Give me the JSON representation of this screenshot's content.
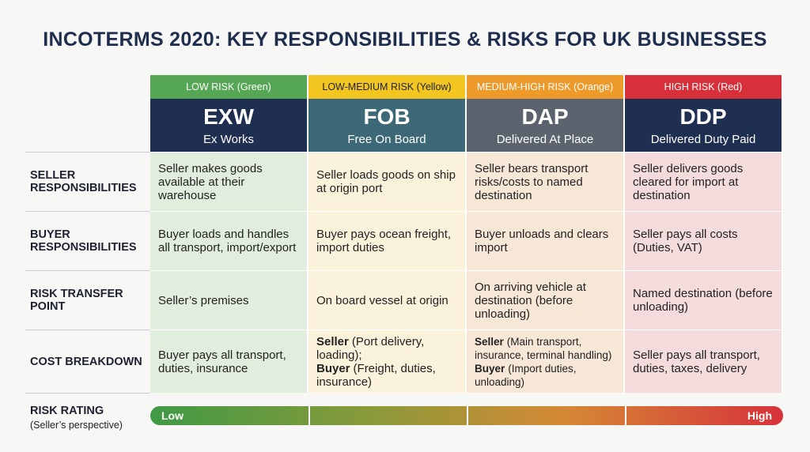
{
  "title": "INCOTERMS 2020: KEY RESPONSIBILITIES & RISKS FOR UK BUSINESSES",
  "columns": [
    {
      "risk": "LOW RISK (Green)",
      "code": "EXW",
      "name": "Ex Works"
    },
    {
      "risk": "LOW-MEDIUM RISK (Yellow)",
      "code": "FOB",
      "name": "Free On Board"
    },
    {
      "risk": "MEDIUM-HIGH RISK (Orange)",
      "code": "DAP",
      "name": "Delivered At Place"
    },
    {
      "risk": "HIGH RISK (Red)",
      "code": "DDP",
      "name": "Delivered Duty Paid"
    }
  ],
  "rows": [
    {
      "label": "SELLER RESPONSIBILITIES",
      "cells": [
        "Seller makes goods available at their warehouse",
        "Seller loads goods on ship at origin port",
        "Seller bears transport risks/costs to named destination",
        "Seller delivers goods cleared for import at destination"
      ]
    },
    {
      "label": "BUYER RESPONSIBILITIES",
      "cells": [
        "Buyer loads and handles all transport, import/export",
        "Buyer pays ocean freight, import duties",
        "Buyer unloads and clears import",
        "Seller pays all costs (Duties, VAT)"
      ]
    },
    {
      "label": "RISK TRANSFER POINT",
      "cells": [
        "Seller’s premises",
        "On board vessel at origin",
        "On arriving vehicle at destination (before unloading)",
        "Named destination (before unloading)"
      ]
    },
    {
      "label": "COST BREAKDOWN",
      "cells": [
        "Buyer pays all transport, duties, insurance",
        [
          {
            "strong": "Seller",
            "text": "(Port delivery, loading);"
          },
          {
            "strong": "Buyer",
            "text": "(Freight, duties, insurance)"
          }
        ],
        [
          {
            "strong": "Seller",
            "text": "(Main transport, insurance, terminal handling)"
          },
          {
            "strong": "Buyer",
            "text": "(Import duties, unloading)"
          }
        ],
        "Seller pays all transport, duties, taxes, delivery"
      ]
    }
  ],
  "rating": {
    "label": "RISK RATING",
    "note": "(Seller’s perspective)",
    "low": "Low",
    "high": "High"
  }
}
